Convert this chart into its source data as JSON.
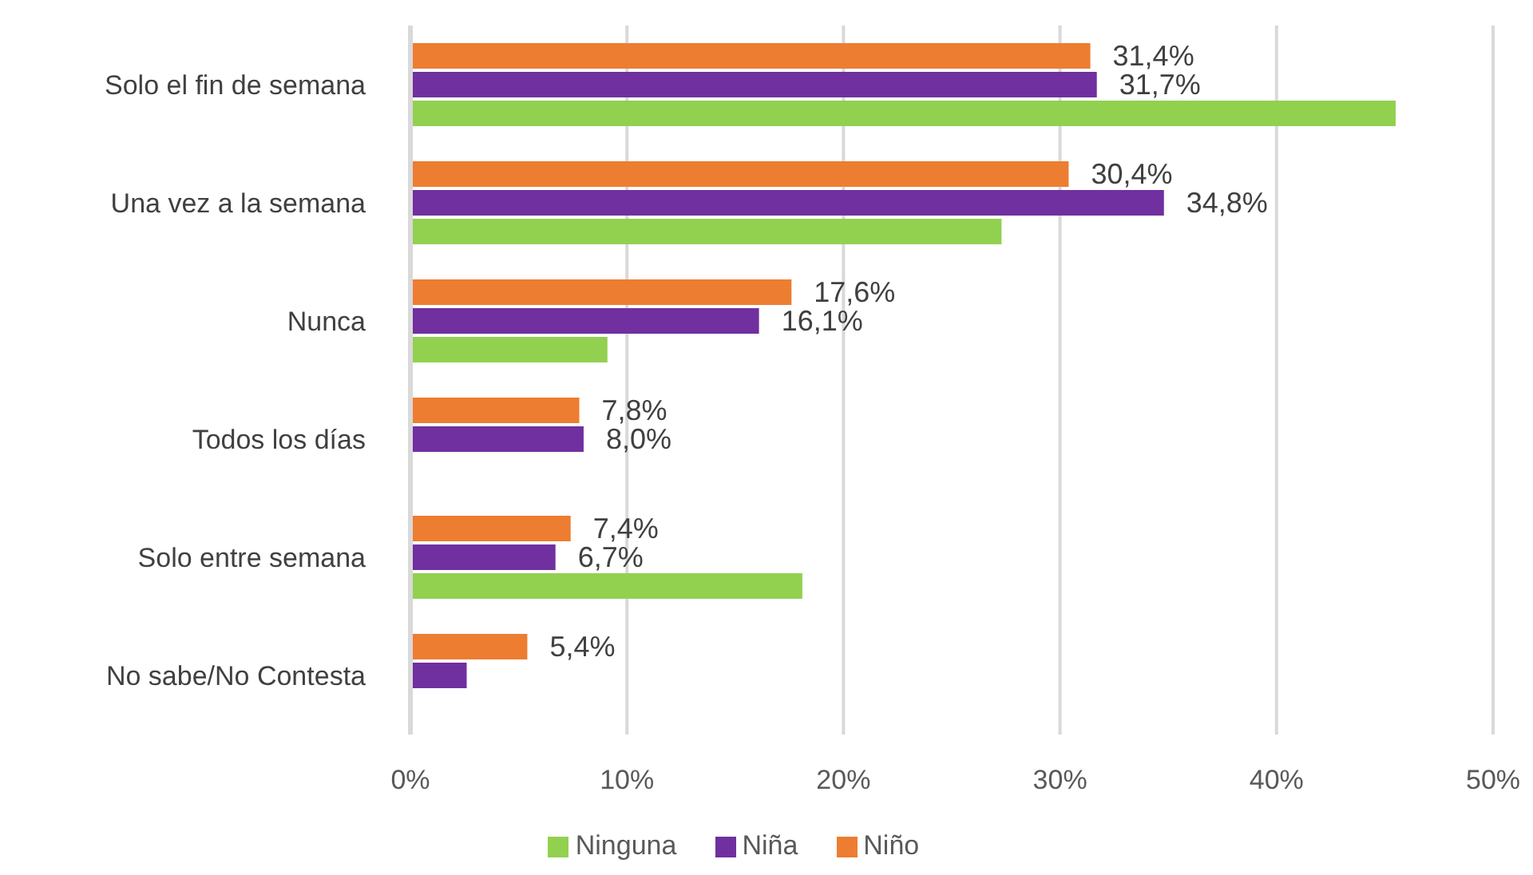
{
  "chart_data": {
    "type": "bar",
    "orientation": "horizontal",
    "categories": [
      "Solo el fin de semana",
      "Una vez a la semana",
      "Nunca",
      "Todos los días",
      "Solo entre semana",
      "No sabe/No Contesta"
    ],
    "series": [
      {
        "name": "Niño",
        "color": "#ed7d31",
        "values": [
          31.4,
          30.4,
          17.6,
          7.8,
          7.4,
          5.4
        ],
        "value_labels": [
          "31,4%",
          "30,4%",
          "17,6%",
          "7,8%",
          "7,4%",
          "5,4%"
        ]
      },
      {
        "name": "Niña",
        "color": "#7030a0",
        "values": [
          31.7,
          34.8,
          16.1,
          8.0,
          6.7,
          2.6
        ],
        "value_labels": [
          "31,7%",
          "34,8%",
          "16,1%",
          "8,0%",
          "6,7%",
          null
        ]
      },
      {
        "name": "Ninguna",
        "color": "#92d050",
        "values": [
          45.5,
          27.3,
          9.1,
          null,
          18.1,
          null
        ]
      }
    ],
    "xlim": [
      0,
      50
    ],
    "xticks": [
      {
        "value": 0,
        "label": "0%"
      },
      {
        "value": 10,
        "label": "10%"
      },
      {
        "value": 20,
        "label": "20%"
      },
      {
        "value": 30,
        "label": "30%"
      },
      {
        "value": 40,
        "label": "40%"
      },
      {
        "value": 50,
        "label": "50%"
      }
    ],
    "grid": "x",
    "legend": "bottom"
  }
}
